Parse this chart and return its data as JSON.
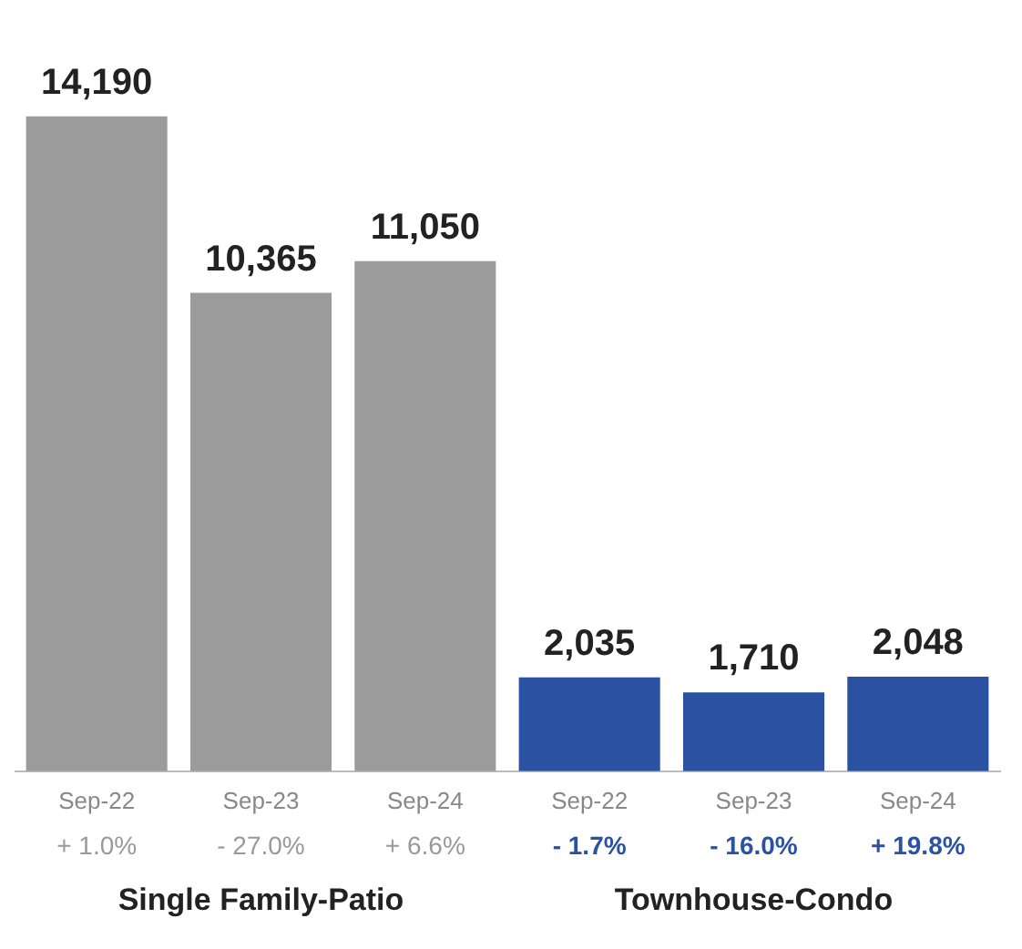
{
  "chart_data": {
    "type": "bar",
    "categories": [
      "Sep-22",
      "Sep-23",
      "Sep-24",
      "Sep-22",
      "Sep-23",
      "Sep-24"
    ],
    "values": [
      14190,
      10365,
      11050,
      2035,
      1710,
      2048
    ],
    "colors": [
      "#9b9b9b",
      "#9b9b9b",
      "#9b9b9b",
      "#2b51a3",
      "#2b51a3",
      "#2b51a3"
    ],
    "value_labels": [
      "14,190",
      "10,365",
      "11,050",
      "2,035",
      "1,710",
      "2,048"
    ],
    "annotations": [
      "+ 1.0%",
      "- 27.0%",
      "+ 6.6%",
      "- 1.7%",
      "- 16.0%",
      "+ 19.8%",
      "Single Family-Patio",
      "Townhouse-Condo"
    ]
  }
}
